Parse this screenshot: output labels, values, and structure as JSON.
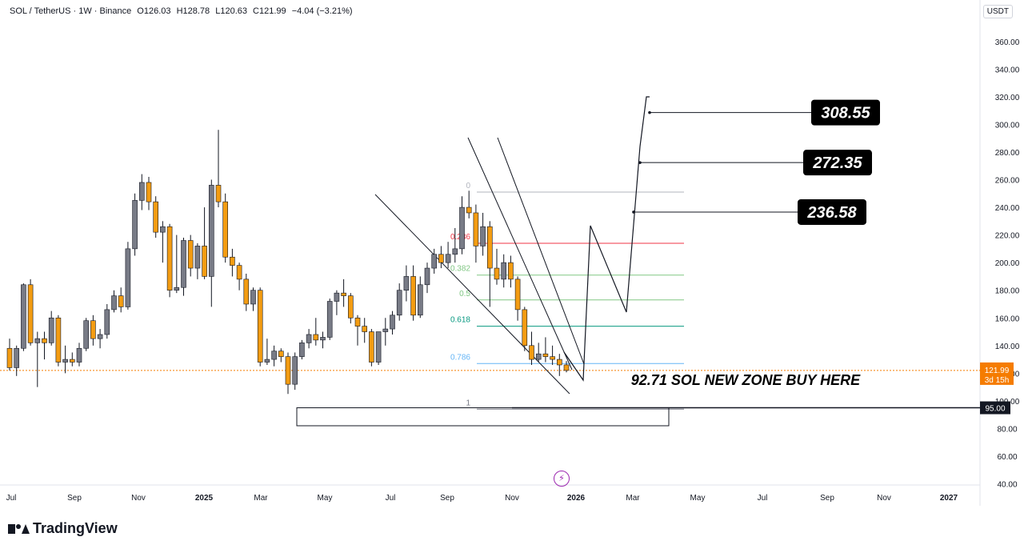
{
  "header": {
    "symbol": "SOL / TetherUS · 1W · Binance",
    "open": "O126.03",
    "high": "H128.78",
    "low": "L120.63",
    "close": "C121.99",
    "change": "−4.04 (−3.21%)"
  },
  "currency_label": "USDT",
  "brand": "TradingView",
  "colors": {
    "up": "#787b86",
    "down": "#f39c12",
    "fib_red": "#f23645",
    "fib_green": "#81c784",
    "fib_teal": "#089981",
    "fib_blue": "#64b5f6",
    "current_price": "#f57c00"
  },
  "chart_data": {
    "type": "candlestick",
    "y_axis": {
      "ylim": [
        30,
        365
      ],
      "ticks": [
        40,
        60,
        80,
        100,
        120,
        140,
        160,
        180,
        200,
        220,
        240,
        260,
        280,
        300,
        320,
        340,
        360
      ]
    },
    "x_axis": {
      "labels": [
        "Jul",
        "Sep",
        "Nov",
        "2025",
        "Mar",
        "May",
        "Jul",
        "Sep",
        "Nov",
        "2026",
        "Mar",
        "May",
        "Jul",
        "Sep",
        "Nov",
        "2027"
      ]
    },
    "candles": [
      {
        "o": 138,
        "h": 145,
        "l": 122,
        "c": 124
      },
      {
        "o": 124,
        "h": 140,
        "l": 118,
        "c": 138
      },
      {
        "o": 138,
        "h": 185,
        "l": 136,
        "c": 184
      },
      {
        "o": 184,
        "h": 188,
        "l": 140,
        "c": 142
      },
      {
        "o": 142,
        "h": 150,
        "l": 110,
        "c": 145
      },
      {
        "o": 145,
        "h": 150,
        "l": 130,
        "c": 142
      },
      {
        "o": 142,
        "h": 165,
        "l": 140,
        "c": 160
      },
      {
        "o": 160,
        "h": 162,
        "l": 125,
        "c": 128
      },
      {
        "o": 128,
        "h": 140,
        "l": 120,
        "c": 130
      },
      {
        "o": 130,
        "h": 135,
        "l": 125,
        "c": 128
      },
      {
        "o": 128,
        "h": 142,
        "l": 125,
        "c": 138
      },
      {
        "o": 138,
        "h": 160,
        "l": 136,
        "c": 158
      },
      {
        "o": 158,
        "h": 162,
        "l": 140,
        "c": 145
      },
      {
        "o": 145,
        "h": 152,
        "l": 138,
        "c": 148
      },
      {
        "o": 148,
        "h": 170,
        "l": 145,
        "c": 166
      },
      {
        "o": 166,
        "h": 180,
        "l": 164,
        "c": 176
      },
      {
        "o": 176,
        "h": 182,
        "l": 164,
        "c": 168
      },
      {
        "o": 168,
        "h": 215,
        "l": 166,
        "c": 210
      },
      {
        "o": 210,
        "h": 250,
        "l": 205,
        "c": 245
      },
      {
        "o": 245,
        "h": 264,
        "l": 238,
        "c": 258
      },
      {
        "o": 258,
        "h": 262,
        "l": 238,
        "c": 244
      },
      {
        "o": 244,
        "h": 248,
        "l": 218,
        "c": 222
      },
      {
        "o": 222,
        "h": 230,
        "l": 200,
        "c": 226
      },
      {
        "o": 226,
        "h": 228,
        "l": 175,
        "c": 180
      },
      {
        "o": 180,
        "h": 220,
        "l": 178,
        "c": 182
      },
      {
        "o": 182,
        "h": 218,
        "l": 176,
        "c": 216
      },
      {
        "o": 216,
        "h": 220,
        "l": 190,
        "c": 196
      },
      {
        "o": 196,
        "h": 214,
        "l": 188,
        "c": 212
      },
      {
        "o": 212,
        "h": 240,
        "l": 188,
        "c": 190
      },
      {
        "o": 190,
        "h": 260,
        "l": 168,
        "c": 256
      },
      {
        "o": 256,
        "h": 296,
        "l": 240,
        "c": 244
      },
      {
        "o": 244,
        "h": 250,
        "l": 200,
        "c": 204
      },
      {
        "o": 204,
        "h": 210,
        "l": 190,
        "c": 198
      },
      {
        "o": 198,
        "h": 200,
        "l": 180,
        "c": 188
      },
      {
        "o": 188,
        "h": 192,
        "l": 165,
        "c": 170
      },
      {
        "o": 170,
        "h": 182,
        "l": 165,
        "c": 180
      },
      {
        "o": 180,
        "h": 182,
        "l": 125,
        "c": 128
      },
      {
        "o": 128,
        "h": 145,
        "l": 126,
        "c": 130
      },
      {
        "o": 130,
        "h": 140,
        "l": 125,
        "c": 136
      },
      {
        "o": 136,
        "h": 138,
        "l": 128,
        "c": 132
      },
      {
        "o": 132,
        "h": 135,
        "l": 105,
        "c": 112
      },
      {
        "o": 112,
        "h": 135,
        "l": 108,
        "c": 132
      },
      {
        "o": 132,
        "h": 144,
        "l": 130,
        "c": 142
      },
      {
        "o": 142,
        "h": 152,
        "l": 138,
        "c": 148
      },
      {
        "o": 148,
        "h": 160,
        "l": 140,
        "c": 144
      },
      {
        "o": 144,
        "h": 150,
        "l": 138,
        "c": 146
      },
      {
        "o": 146,
        "h": 174,
        "l": 144,
        "c": 172
      },
      {
        "o": 172,
        "h": 180,
        "l": 162,
        "c": 178
      },
      {
        "o": 178,
        "h": 188,
        "l": 168,
        "c": 176
      },
      {
        "o": 176,
        "h": 178,
        "l": 156,
        "c": 160
      },
      {
        "o": 160,
        "h": 162,
        "l": 140,
        "c": 154
      },
      {
        "o": 154,
        "h": 160,
        "l": 142,
        "c": 150
      },
      {
        "o": 150,
        "h": 152,
        "l": 125,
        "c": 128
      },
      {
        "o": 128,
        "h": 150,
        "l": 126,
        "c": 150
      },
      {
        "o": 150,
        "h": 160,
        "l": 140,
        "c": 152
      },
      {
        "o": 152,
        "h": 165,
        "l": 148,
        "c": 162
      },
      {
        "o": 162,
        "h": 185,
        "l": 158,
        "c": 180
      },
      {
        "o": 180,
        "h": 198,
        "l": 172,
        "c": 190
      },
      {
        "o": 190,
        "h": 198,
        "l": 158,
        "c": 162
      },
      {
        "o": 162,
        "h": 190,
        "l": 160,
        "c": 184
      },
      {
        "o": 184,
        "h": 200,
        "l": 178,
        "c": 196
      },
      {
        "o": 196,
        "h": 210,
        "l": 192,
        "c": 206
      },
      {
        "o": 206,
        "h": 212,
        "l": 196,
        "c": 200
      },
      {
        "o": 200,
        "h": 215,
        "l": 196,
        "c": 206
      },
      {
        "o": 206,
        "h": 225,
        "l": 200,
        "c": 210
      },
      {
        "o": 210,
        "h": 248,
        "l": 206,
        "c": 240
      },
      {
        "o": 240,
        "h": 252,
        "l": 232,
        "c": 236
      },
      {
        "o": 236,
        "h": 242,
        "l": 200,
        "c": 212
      },
      {
        "o": 212,
        "h": 236,
        "l": 205,
        "c": 226
      },
      {
        "o": 226,
        "h": 230,
        "l": 168,
        "c": 196
      },
      {
        "o": 196,
        "h": 210,
        "l": 184,
        "c": 188
      },
      {
        "o": 188,
        "h": 206,
        "l": 182,
        "c": 200
      },
      {
        "o": 200,
        "h": 205,
        "l": 182,
        "c": 188
      },
      {
        "o": 188,
        "h": 190,
        "l": 158,
        "c": 166
      },
      {
        "o": 166,
        "h": 168,
        "l": 136,
        "c": 140
      },
      {
        "o": 140,
        "h": 150,
        "l": 126,
        "c": 130
      },
      {
        "o": 130,
        "h": 142,
        "l": 128,
        "c": 134
      },
      {
        "o": 134,
        "h": 146,
        "l": 128,
        "c": 132
      },
      {
        "o": 132,
        "h": 140,
        "l": 126,
        "c": 130
      },
      {
        "o": 130,
        "h": 134,
        "l": 118,
        "c": 126
      },
      {
        "o": 126.03,
        "h": 128.78,
        "l": 120.63,
        "c": 121.99
      }
    ],
    "fibonacci": [
      {
        "label": "0",
        "value": 251,
        "color": "#b2b5be"
      },
      {
        "label": "0.236",
        "value": 214,
        "color": "#f23645"
      },
      {
        "label": "0.382",
        "value": 191,
        "color": "#81c784"
      },
      {
        "label": "0.5",
        "value": 173,
        "color": "#81c784"
      },
      {
        "label": "0.618",
        "value": 154,
        "color": "#089981"
      },
      {
        "label": "0.786",
        "value": 127,
        "color": "#64b5f6"
      },
      {
        "label": "1",
        "value": 94,
        "color": "#787b86"
      }
    ],
    "targets": [
      {
        "label": "308.55",
        "value": 308.55
      },
      {
        "label": "272.35",
        "value": 272.35
      },
      {
        "label": "236.58",
        "value": 236.58
      }
    ],
    "annotation": "92.71 SOL NEW ZONE BUY HERE",
    "buy_zone": {
      "top": 95,
      "bottom": 82,
      "label": "95.00"
    },
    "current_price": {
      "value": "121.99",
      "countdown": "3d 15h"
    }
  }
}
